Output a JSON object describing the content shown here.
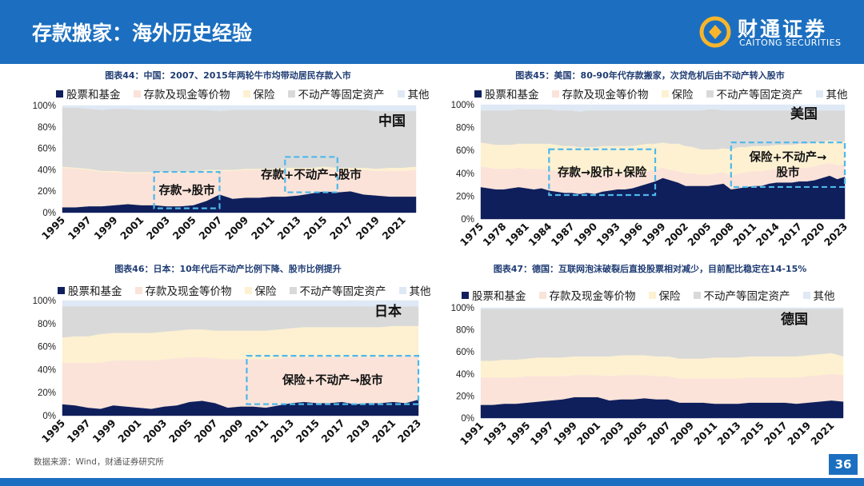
{
  "header": {
    "title": "存款搬家：海外历史经验",
    "logo_cn": "财通证券",
    "logo_en": "CAITONG SECURITIES"
  },
  "colors": {
    "header": "#1c6fc0",
    "stocks": "#0f1f5c",
    "deposits": "#fbe3d9",
    "insurance": "#fdf1d2",
    "realestate": "#d9d9d9",
    "other": "#dfe9f5",
    "box": "#4db8ea"
  },
  "legend": [
    "股票和基金",
    "存款及现金等价物",
    "保险",
    "不动产等固定资产",
    "其他"
  ],
  "footer": {
    "source": "数据来源：Wind，财通证券研究所",
    "page": "36"
  },
  "chart_data": [
    {
      "id": "china",
      "type": "area",
      "title": "图表44：中国：2007、2015年两轮牛市均带动居民存款入市",
      "country": "中国",
      "x": [
        1995,
        1996,
        1997,
        1998,
        1999,
        2000,
        2001,
        2002,
        2003,
        2004,
        2005,
        2006,
        2007,
        2008,
        2009,
        2010,
        2011,
        2012,
        2013,
        2014,
        2015,
        2016,
        2017,
        2018,
        2019,
        2020,
        2021,
        2022
      ],
      "xticks": [
        "1995",
        "1997",
        "1999",
        "2001",
        "2003",
        "2005",
        "2007",
        "2009",
        "2011",
        "2013",
        "2015",
        "2017",
        "2019",
        "2021"
      ],
      "yticks": [
        "0%",
        "20%",
        "40%",
        "60%",
        "80%",
        "100%"
      ],
      "series": [
        {
          "name": "股票和基金",
          "values": [
            5,
            5,
            6,
            6,
            7,
            8,
            7,
            7,
            6,
            6,
            7,
            11,
            17,
            13,
            14,
            14,
            15,
            15,
            16,
            18,
            20,
            19,
            20,
            17,
            16,
            15,
            15,
            15
          ]
        },
        {
          "name": "存款及现金等价物",
          "values": [
            37,
            36,
            34,
            32,
            31,
            29,
            30,
            30,
            31,
            31,
            30,
            28,
            22,
            26,
            26,
            26,
            25,
            25,
            24,
            22,
            21,
            21,
            20,
            23,
            23,
            24,
            24,
            25
          ]
        },
        {
          "name": "保险",
          "values": [
            1,
            1,
            1,
            1,
            1,
            1,
            1,
            1,
            1,
            1,
            1,
            1,
            1,
            1,
            1,
            1,
            1,
            2,
            2,
            2,
            2,
            2,
            2,
            2,
            2,
            3,
            3,
            3
          ]
        },
        {
          "name": "不动产等固定资产",
          "values": [
            55,
            56,
            56,
            57,
            58,
            59,
            58,
            58,
            58,
            58,
            58,
            56,
            55,
            56,
            55,
            55,
            55,
            54,
            54,
            54,
            53,
            54,
            54,
            54,
            54,
            53,
            53,
            52
          ]
        },
        {
          "name": "其他",
          "values": [
            2,
            2,
            3,
            4,
            3,
            3,
            4,
            4,
            4,
            4,
            4,
            4,
            5,
            4,
            4,
            4,
            4,
            4,
            4,
            4,
            4,
            4,
            4,
            4,
            5,
            5,
            5,
            5
          ]
        }
      ],
      "annotations": [
        {
          "text": "存款→股市",
          "x0": 2002,
          "x1": 2007,
          "y0": 4,
          "y1": 38
        },
        {
          "text": "存款+不动产→股市",
          "x0": 2012,
          "x1": 2016,
          "y0": 19,
          "y1": 52
        }
      ]
    },
    {
      "id": "us",
      "type": "area",
      "title": "图表45：美国：80-90年代存款搬家，次贷危机后由不动产转入股市",
      "country": "美国",
      "x": [
        1975,
        1976,
        1977,
        1978,
        1979,
        1980,
        1981,
        1982,
        1983,
        1984,
        1985,
        1986,
        1987,
        1988,
        1989,
        1990,
        1991,
        1992,
        1993,
        1994,
        1995,
        1996,
        1997,
        1998,
        1999,
        2000,
        2001,
        2002,
        2003,
        2004,
        2005,
        2006,
        2007,
        2008,
        2009,
        2010,
        2011,
        2012,
        2013,
        2014,
        2015,
        2016,
        2017,
        2018,
        2019,
        2020,
        2021,
        2022,
        2023
      ],
      "xticks": [
        "1975",
        "1978",
        "1981",
        "1984",
        "1987",
        "1990",
        "1993",
        "1996",
        "1999",
        "2002",
        "2005",
        "2008",
        "2011",
        "2014",
        "2017",
        "2020",
        "2023"
      ],
      "yticks": [
        "0%",
        "20%",
        "40%",
        "60%",
        "80%",
        "100%"
      ],
      "series": [
        {
          "name": "股票和基金",
          "values": [
            28,
            27,
            26,
            26,
            27,
            28,
            27,
            26,
            27,
            25,
            24,
            23,
            23,
            22,
            23,
            22,
            24,
            25,
            26,
            26,
            27,
            29,
            31,
            33,
            36,
            34,
            32,
            29,
            29,
            29,
            29,
            30,
            31,
            26,
            27,
            28,
            29,
            29,
            31,
            32,
            32,
            32,
            33,
            33,
            34,
            36,
            38,
            35,
            37
          ]
        },
        {
          "name": "存款及现金等价物",
          "values": [
            18,
            18,
            18,
            18,
            17,
            17,
            17,
            18,
            17,
            18,
            18,
            18,
            18,
            18,
            17,
            17,
            16,
            15,
            14,
            13,
            13,
            12,
            11,
            10,
            9,
            9,
            10,
            11,
            11,
            10,
            10,
            10,
            10,
            12,
            13,
            13,
            13,
            13,
            12,
            12,
            12,
            12,
            12,
            12,
            12,
            12,
            11,
            12,
            11
          ]
        },
        {
          "name": "保险",
          "values": [
            21,
            21,
            21,
            21,
            21,
            21,
            22,
            22,
            22,
            23,
            23,
            23,
            23,
            23,
            23,
            24,
            24,
            24,
            24,
            25,
            24,
            24,
            24,
            23,
            22,
            23,
            24,
            24,
            23,
            22,
            22,
            21,
            21,
            23,
            23,
            22,
            22,
            22,
            21,
            21,
            21,
            21,
            21,
            21,
            21,
            20,
            20,
            21,
            20
          ]
        },
        {
          "name": "不动产等固定资产",
          "values": [
            28,
            29,
            30,
            30,
            30,
            30,
            30,
            30,
            30,
            30,
            30,
            31,
            31,
            31,
            32,
            32,
            31,
            31,
            31,
            31,
            31,
            30,
            29,
            29,
            28,
            29,
            29,
            31,
            32,
            34,
            35,
            35,
            33,
            34,
            32,
            32,
            31,
            31,
            31,
            30,
            30,
            30,
            29,
            29,
            28,
            27,
            26,
            27,
            27
          ]
        },
        {
          "name": "其他",
          "values": [
            5,
            5,
            5,
            5,
            5,
            4,
            4,
            4,
            4,
            4,
            5,
            5,
            5,
            6,
            5,
            5,
            5,
            5,
            5,
            5,
            5,
            5,
            5,
            5,
            5,
            5,
            5,
            5,
            5,
            5,
            4,
            4,
            5,
            5,
            5,
            5,
            5,
            5,
            5,
            5,
            5,
            5,
            5,
            5,
            5,
            5,
            5,
            5,
            5
          ]
        }
      ],
      "annotations": [
        {
          "text": "存款→股市+保险",
          "x0": 1984,
          "x1": 1998,
          "y0": 21,
          "y1": 61
        },
        {
          "text": "保险+不动产→\n股市",
          "x0": 2008,
          "x1": 2023,
          "y0": 28,
          "y1": 67
        }
      ]
    },
    {
      "id": "japan",
      "type": "area",
      "title": "图表46：日本：10年代后不动产比例下降、股市比例提升",
      "country": "日本",
      "x": [
        1995,
        1996,
        1997,
        1998,
        1999,
        2000,
        2001,
        2002,
        2003,
        2004,
        2005,
        2006,
        2007,
        2008,
        2009,
        2010,
        2011,
        2012,
        2013,
        2014,
        2015,
        2016,
        2017,
        2018,
        2019,
        2020,
        2021,
        2022,
        2023
      ],
      "xticks": [
        "1995",
        "1997",
        "1999",
        "2001",
        "2003",
        "2005",
        "2007",
        "2009",
        "2011",
        "2013",
        "2015",
        "2017",
        "2019",
        "2021",
        "2023"
      ],
      "yticks": [
        "0%",
        "20%",
        "40%",
        "60%",
        "80%",
        "100%"
      ],
      "series": [
        {
          "name": "股票和基金",
          "values": [
            10,
            9,
            7,
            6,
            9,
            8,
            7,
            6,
            8,
            9,
            12,
            13,
            11,
            7,
            8,
            8,
            7,
            9,
            11,
            12,
            11,
            11,
            12,
            10,
            11,
            11,
            12,
            11,
            14
          ]
        },
        {
          "name": "存款及现金等价物",
          "values": [
            36,
            37,
            39,
            40,
            39,
            40,
            41,
            42,
            41,
            41,
            39,
            38,
            39,
            42,
            41,
            41,
            42,
            41,
            40,
            39,
            40,
            40,
            39,
            41,
            40,
            40,
            40,
            41,
            38
          ]
        },
        {
          "name": "保险",
          "values": [
            22,
            23,
            23,
            25,
            24,
            24,
            24,
            24,
            24,
            24,
            24,
            24,
            24,
            25,
            25,
            25,
            25,
            25,
            25,
            26,
            26,
            26,
            26,
            26,
            26,
            26,
            26,
            26,
            26
          ]
        },
        {
          "name": "不动产等固定资产",
          "values": [
            27,
            26,
            26,
            24,
            23,
            23,
            23,
            23,
            22,
            21,
            20,
            20,
            21,
            21,
            21,
            21,
            21,
            20,
            19,
            18,
            18,
            18,
            18,
            18,
            18,
            18,
            17,
            17,
            17
          ]
        },
        {
          "name": "其他",
          "values": [
            5,
            5,
            5,
            5,
            5,
            5,
            5,
            5,
            5,
            5,
            5,
            5,
            5,
            5,
            5,
            5,
            5,
            5,
            5,
            5,
            5,
            5,
            5,
            5,
            5,
            5,
            5,
            5,
            5
          ]
        }
      ],
      "annotations": [
        {
          "text": "保险+不动产→股市",
          "x0": 2009.5,
          "x1": 2023,
          "y0": 10,
          "y1": 52
        }
      ]
    },
    {
      "id": "germany",
      "type": "area",
      "title": "图表47：德国：互联网泡沫破裂后直投股票相对减少，目前配比稳定在14-15%",
      "country": "德国",
      "x": [
        1991,
        1992,
        1993,
        1994,
        1995,
        1996,
        1997,
        1998,
        1999,
        2000,
        2001,
        2002,
        2003,
        2004,
        2005,
        2006,
        2007,
        2008,
        2009,
        2010,
        2011,
        2012,
        2013,
        2014,
        2015,
        2016,
        2017,
        2018,
        2019,
        2020,
        2021,
        2022
      ],
      "xticks": [
        "1991",
        "1993",
        "1995",
        "1997",
        "1999",
        "2001",
        "2003",
        "2005",
        "2007",
        "2009",
        "2011",
        "2013",
        "2015",
        "2017",
        "2019",
        "2021"
      ],
      "yticks": [
        "0%",
        "20%",
        "40%",
        "60%",
        "80%",
        "100%"
      ],
      "series": [
        {
          "name": "股票和基金",
          "values": [
            12,
            12,
            13,
            13,
            14,
            15,
            16,
            17,
            19,
            19,
            19,
            16,
            17,
            17,
            18,
            17,
            17,
            14,
            14,
            14,
            13,
            13,
            13,
            14,
            14,
            14,
            14,
            13,
            14,
            15,
            16,
            15
          ]
        },
        {
          "name": "存款及现金等价物",
          "values": [
            25,
            25,
            24,
            24,
            24,
            23,
            22,
            21,
            20,
            20,
            20,
            22,
            22,
            22,
            21,
            21,
            21,
            22,
            22,
            22,
            23,
            23,
            23,
            23,
            23,
            23,
            23,
            24,
            24,
            24,
            24,
            24
          ]
        },
        {
          "name": "保险",
          "values": [
            15,
            15,
            16,
            16,
            16,
            17,
            17,
            17,
            17,
            17,
            17,
            18,
            18,
            18,
            18,
            18,
            18,
            18,
            18,
            18,
            19,
            19,
            19,
            19,
            19,
            19,
            19,
            19,
            19,
            19,
            19,
            17
          ]
        },
        {
          "name": "不动产等固定资产",
          "values": [
            47,
            47,
            46,
            46,
            45,
            44,
            44,
            44,
            43,
            43,
            43,
            43,
            42,
            42,
            42,
            43,
            43,
            45,
            45,
            45,
            44,
            44,
            44,
            43,
            43,
            43,
            43,
            43,
            42,
            41,
            40,
            43
          ]
        },
        {
          "name": "其他",
          "values": [
            1,
            1,
            1,
            1,
            1,
            1,
            1,
            1,
            1,
            1,
            1,
            1,
            1,
            1,
            1,
            1,
            1,
            1,
            1,
            1,
            1,
            1,
            1,
            1,
            1,
            1,
            1,
            1,
            1,
            1,
            1,
            1
          ]
        }
      ],
      "annotations": []
    }
  ]
}
